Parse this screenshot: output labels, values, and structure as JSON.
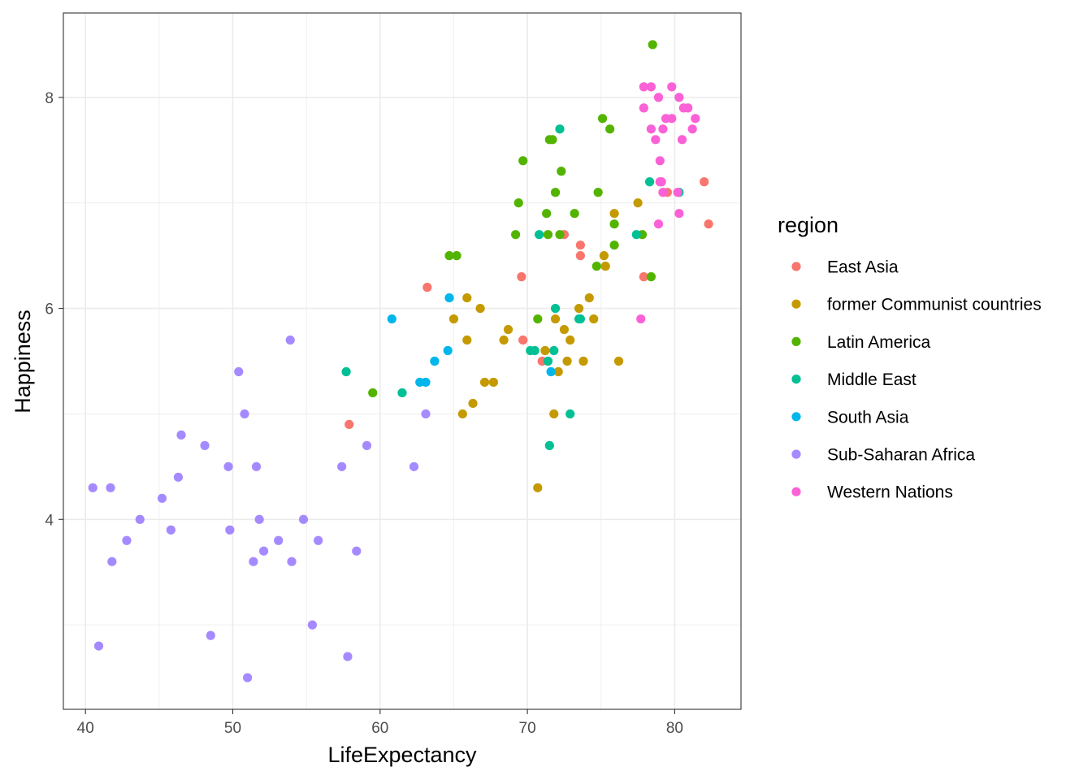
{
  "chart_data": {
    "type": "scatter",
    "xlabel": "LifeExpectancy",
    "ylabel": "Happiness",
    "xlim": [
      38.5,
      84.5
    ],
    "ylim": [
      2.2,
      8.8
    ],
    "x_ticks": [
      40,
      50,
      60,
      70,
      80
    ],
    "y_ticks": [
      4,
      6,
      8
    ],
    "x_tick_labels": [
      "40",
      "50",
      "60",
      "70",
      "80"
    ],
    "y_tick_labels": [
      "4",
      "6",
      "8"
    ],
    "grid": true,
    "legend": {
      "title": "region",
      "position": "right"
    },
    "series": [
      {
        "name": "East Asia",
        "color": "#F8766D",
        "points": [
          [
            63.2,
            6.2
          ],
          [
            57.9,
            4.9
          ],
          [
            69.6,
            6.3
          ],
          [
            69.7,
            5.7
          ],
          [
            71.0,
            5.5
          ],
          [
            72.5,
            6.7
          ],
          [
            73.6,
            6.6
          ],
          [
            73.6,
            6.5
          ],
          [
            77.9,
            6.3
          ],
          [
            79.5,
            7.1
          ],
          [
            82.0,
            7.2
          ],
          [
            82.3,
            6.8
          ]
        ]
      },
      {
        "name": "former Communist countries",
        "color": "#C49A00",
        "points": [
          [
            65.0,
            5.9
          ],
          [
            65.9,
            6.1
          ],
          [
            65.9,
            5.7
          ],
          [
            66.8,
            6.0
          ],
          [
            65.6,
            5.0
          ],
          [
            66.3,
            5.1
          ],
          [
            67.1,
            5.3
          ],
          [
            67.7,
            5.3
          ],
          [
            68.4,
            5.7
          ],
          [
            68.7,
            5.8
          ],
          [
            70.7,
            4.3
          ],
          [
            71.2,
            5.6
          ],
          [
            71.8,
            5.0
          ],
          [
            71.9,
            5.9
          ],
          [
            72.1,
            5.4
          ],
          [
            72.5,
            5.8
          ],
          [
            72.7,
            5.5
          ],
          [
            72.9,
            5.7
          ],
          [
            73.5,
            6.0
          ],
          [
            73.8,
            5.5
          ],
          [
            74.2,
            6.1
          ],
          [
            74.5,
            5.9
          ],
          [
            75.2,
            6.5
          ],
          [
            75.3,
            6.4
          ],
          [
            75.9,
            6.9
          ],
          [
            76.2,
            5.5
          ],
          [
            77.5,
            7.0
          ]
        ]
      },
      {
        "name": "Latin America",
        "color": "#53B400",
        "points": [
          [
            59.5,
            5.2
          ],
          [
            64.7,
            6.5
          ],
          [
            65.2,
            6.5
          ],
          [
            69.2,
            6.7
          ],
          [
            69.4,
            7.0
          ],
          [
            69.7,
            7.4
          ],
          [
            70.7,
            5.9
          ],
          [
            71.3,
            6.9
          ],
          [
            71.4,
            6.7
          ],
          [
            71.5,
            7.6
          ],
          [
            71.7,
            7.6
          ],
          [
            71.9,
            7.1
          ],
          [
            72.2,
            6.7
          ],
          [
            72.3,
            7.3
          ],
          [
            73.2,
            6.9
          ],
          [
            74.7,
            6.4
          ],
          [
            74.8,
            7.1
          ],
          [
            75.1,
            7.8
          ],
          [
            75.6,
            7.7
          ],
          [
            75.9,
            6.6
          ],
          [
            75.9,
            6.8
          ],
          [
            77.8,
            6.7
          ],
          [
            78.4,
            6.3
          ],
          [
            78.5,
            8.5
          ]
        ]
      },
      {
        "name": "Middle East",
        "color": "#00C094",
        "points": [
          [
            57.7,
            5.4
          ],
          [
            61.5,
            5.2
          ],
          [
            70.2,
            5.6
          ],
          [
            70.5,
            5.6
          ],
          [
            70.8,
            6.7
          ],
          [
            71.4,
            5.5
          ],
          [
            71.5,
            4.7
          ],
          [
            71.8,
            5.6
          ],
          [
            71.9,
            6.0
          ],
          [
            72.2,
            7.7
          ],
          [
            72.9,
            5.0
          ],
          [
            73.5,
            5.9
          ],
          [
            73.6,
            5.9
          ],
          [
            77.4,
            6.7
          ],
          [
            78.3,
            7.2
          ],
          [
            80.3,
            7.1
          ]
        ]
      },
      {
        "name": "South Asia",
        "color": "#00B6EB",
        "points": [
          [
            60.8,
            5.9
          ],
          [
            62.7,
            5.3
          ],
          [
            63.1,
            5.3
          ],
          [
            63.7,
            5.5
          ],
          [
            64.6,
            5.6
          ],
          [
            64.7,
            6.1
          ],
          [
            71.6,
            5.4
          ]
        ]
      },
      {
        "name": "Sub-Saharan Africa",
        "color": "#A58AFF",
        "points": [
          [
            40.5,
            4.3
          ],
          [
            40.9,
            2.8
          ],
          [
            41.7,
            4.3
          ],
          [
            41.8,
            3.6
          ],
          [
            42.8,
            3.8
          ],
          [
            43.7,
            4.0
          ],
          [
            45.2,
            4.2
          ],
          [
            45.8,
            3.9
          ],
          [
            46.3,
            4.4
          ],
          [
            46.5,
            4.8
          ],
          [
            48.1,
            4.7
          ],
          [
            48.5,
            2.9
          ],
          [
            49.7,
            4.5
          ],
          [
            49.8,
            3.9
          ],
          [
            50.4,
            5.4
          ],
          [
            50.8,
            5.0
          ],
          [
            51.0,
            2.5
          ],
          [
            51.4,
            3.6
          ],
          [
            51.6,
            4.5
          ],
          [
            51.8,
            4.0
          ],
          [
            52.1,
            3.7
          ],
          [
            53.1,
            3.8
          ],
          [
            53.9,
            5.7
          ],
          [
            54.0,
            3.6
          ],
          [
            54.8,
            4.0
          ],
          [
            55.4,
            3.0
          ],
          [
            55.8,
            3.8
          ],
          [
            57.4,
            4.5
          ],
          [
            57.8,
            2.7
          ],
          [
            58.4,
            3.7
          ],
          [
            59.1,
            4.7
          ],
          [
            62.3,
            4.5
          ],
          [
            63.1,
            5.0
          ]
        ]
      },
      {
        "name": "Western Nations",
        "color": "#FB61D7",
        "points": [
          [
            77.7,
            5.9
          ],
          [
            77.9,
            8.1
          ],
          [
            77.9,
            7.9
          ],
          [
            78.4,
            8.1
          ],
          [
            78.4,
            7.7
          ],
          [
            78.7,
            7.6
          ],
          [
            78.9,
            8.0
          ],
          [
            78.9,
            6.8
          ],
          [
            79.0,
            7.4
          ],
          [
            79.0,
            7.2
          ],
          [
            79.1,
            7.2
          ],
          [
            79.2,
            7.1
          ],
          [
            79.2,
            7.7
          ],
          [
            79.4,
            7.8
          ],
          [
            79.8,
            8.1
          ],
          [
            79.8,
            7.8
          ],
          [
            80.2,
            7.1
          ],
          [
            80.3,
            8.0
          ],
          [
            80.3,
            6.9
          ],
          [
            80.5,
            7.6
          ],
          [
            80.6,
            7.9
          ],
          [
            80.9,
            7.9
          ],
          [
            81.2,
            7.7
          ],
          [
            81.4,
            7.8
          ]
        ]
      }
    ]
  }
}
